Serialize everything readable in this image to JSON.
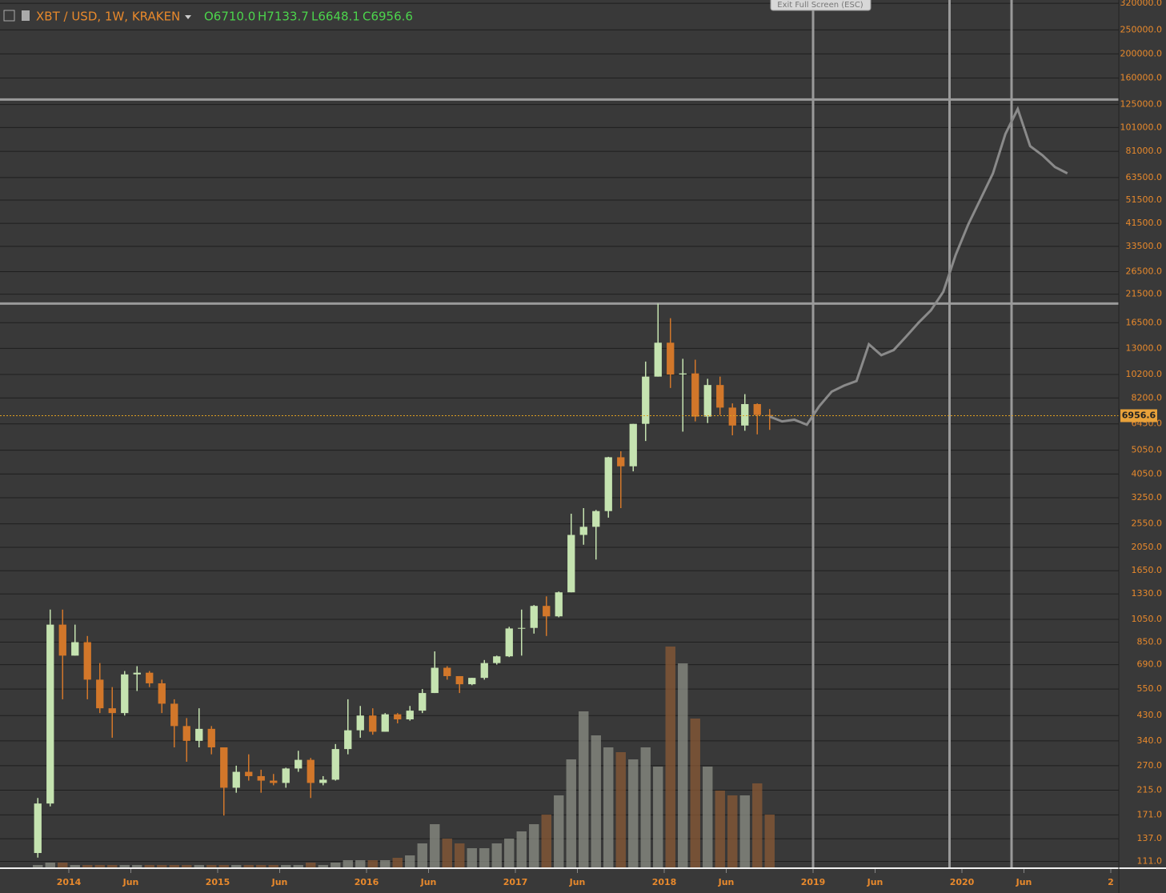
{
  "header": {
    "title": "XBT / USD, 1W, KRAKEN",
    "open": "O6710.0",
    "high": "H7133.7",
    "low": "L6648.1",
    "close": "C6956.6",
    "button": "Exit Full Screen (ESC)"
  },
  "chart_data": {
    "type": "candlestick",
    "log_y": true,
    "grid": true,
    "ylim": [
      105,
      330000
    ],
    "xlim": [
      "2013-07",
      "2021-01"
    ],
    "yticks": [
      {
        "value": 320000,
        "label": "320000.0"
      },
      {
        "value": 250000,
        "label": "250000.0"
      },
      {
        "value": 200000,
        "label": "200000.0"
      },
      {
        "value": 160000,
        "label": "160000.0"
      },
      {
        "value": 125000,
        "label": "125000.0"
      },
      {
        "value": 101000,
        "label": "101000.0"
      },
      {
        "value": 81000,
        "label": "81000.0"
      },
      {
        "value": 63500,
        "label": "63500.0"
      },
      {
        "value": 51500,
        "label": "51500.0"
      },
      {
        "value": 41500,
        "label": "41500.0"
      },
      {
        "value": 33500,
        "label": "33500.0"
      },
      {
        "value": 26500,
        "label": "26500.0"
      },
      {
        "value": 21500,
        "label": "21500.0"
      },
      {
        "value": 16500,
        "label": "16500.0"
      },
      {
        "value": 13000,
        "label": "13000.0"
      },
      {
        "value": 10200,
        "label": "10200.0"
      },
      {
        "value": 8200,
        "label": "8200.0"
      },
      {
        "value": 6450,
        "label": "6450.0"
      },
      {
        "value": 5050,
        "label": "5050.0"
      },
      {
        "value": 4050,
        "label": "4050.0"
      },
      {
        "value": 3250,
        "label": "3250.0"
      },
      {
        "value": 2550,
        "label": "2550.0"
      },
      {
        "value": 2050,
        "label": "2050.0"
      },
      {
        "value": 1650,
        "label": "1650.0"
      },
      {
        "value": 1330,
        "label": "1330.0"
      },
      {
        "value": 1050,
        "label": "1050.0"
      },
      {
        "value": 850,
        "label": "850.0"
      },
      {
        "value": 690,
        "label": "690.0"
      },
      {
        "value": 550,
        "label": "550.0"
      },
      {
        "value": 430,
        "label": "430.0"
      },
      {
        "value": 340,
        "label": "340.0"
      },
      {
        "value": 270,
        "label": "270.0"
      },
      {
        "value": 215,
        "label": "215.0"
      },
      {
        "value": 171,
        "label": "171.0"
      },
      {
        "value": 137,
        "label": "137.0"
      },
      {
        "value": 111,
        "label": "111.0"
      }
    ],
    "xticks": [
      {
        "value": "2014-01",
        "label": "2014"
      },
      {
        "value": "2014-06",
        "label": "Jun"
      },
      {
        "value": "2015-01",
        "label": "2015"
      },
      {
        "value": "2015-06",
        "label": "Jun"
      },
      {
        "value": "2016-01",
        "label": "2016"
      },
      {
        "value": "2016-06",
        "label": "Jun"
      },
      {
        "value": "2017-01",
        "label": "2017"
      },
      {
        "value": "2017-06",
        "label": "Jun"
      },
      {
        "value": "2018-01",
        "label": "2018"
      },
      {
        "value": "2018-06",
        "label": "Jun"
      },
      {
        "value": "2019-01",
        "label": "2019"
      },
      {
        "value": "2019-06",
        "label": "Jun"
      },
      {
        "value": "2020-01",
        "label": "2020"
      },
      {
        "value": "2020-06",
        "label": "Jun"
      },
      {
        "value": "2021-01",
        "label": "2"
      }
    ],
    "up_color": "#c5e3b0",
    "down_color": "#d2772a",
    "x": [
      "2013-10",
      "2013-11",
      "2013-12",
      "2014-01",
      "2014-02",
      "2014-03",
      "2014-04",
      "2014-05",
      "2014-06",
      "2014-07",
      "2014-08",
      "2014-09",
      "2014-10",
      "2014-11",
      "2014-12",
      "2015-01",
      "2015-02",
      "2015-03",
      "2015-04",
      "2015-05",
      "2015-06",
      "2015-07",
      "2015-08",
      "2015-09",
      "2015-10",
      "2015-11",
      "2015-12",
      "2016-01",
      "2016-02",
      "2016-03",
      "2016-04",
      "2016-05",
      "2016-06",
      "2016-07",
      "2016-08",
      "2016-09",
      "2016-10",
      "2016-11",
      "2016-12",
      "2017-01",
      "2017-02",
      "2017-03",
      "2017-04",
      "2017-05",
      "2017-06",
      "2017-07",
      "2017-08",
      "2017-09",
      "2017-10",
      "2017-11",
      "2017-12",
      "2018-01",
      "2018-02",
      "2018-03",
      "2018-04",
      "2018-05",
      "2018-06",
      "2018-07",
      "2018-08",
      "2018-09"
    ],
    "open": [
      120,
      190,
      1000,
      750,
      850,
      600,
      460,
      440,
      630,
      640,
      580,
      480,
      390,
      340,
      380,
      320,
      220,
      255,
      245,
      235,
      230,
      263,
      285,
      230,
      237,
      315,
      375,
      430,
      370,
      435,
      415,
      450,
      530,
      670,
      620,
      575,
      610,
      700,
      745,
      965,
      970,
      1190,
      1080,
      1350,
      2300,
      2480,
      2870,
      4730,
      4350,
      6450,
      10000,
      13700,
      10200,
      10300,
      6900,
      9250,
      7500,
      6350,
      7750,
      7000
    ],
    "high": [
      200,
      1150,
      1150,
      1000,
      900,
      700,
      560,
      650,
      680,
      650,
      600,
      500,
      420,
      460,
      390,
      320,
      270,
      300,
      260,
      250,
      265,
      310,
      290,
      245,
      330,
      500,
      470,
      460,
      440,
      440,
      470,
      550,
      780,
      680,
      620,
      610,
      720,
      750,
      980,
      1150,
      1200,
      1300,
      1360,
      2800,
      2950,
      2900,
      4750,
      5000,
      6450,
      11500,
      19700,
      17200,
      11800,
      11700,
      9800,
      10000,
      7800,
      8500,
      7800,
      7400
    ],
    "low": [
      115,
      185,
      500,
      750,
      500,
      440,
      350,
      430,
      540,
      560,
      440,
      320,
      280,
      320,
      300,
      170,
      210,
      235,
      210,
      225,
      220,
      255,
      200,
      225,
      235,
      300,
      350,
      360,
      370,
      400,
      410,
      440,
      530,
      600,
      530,
      570,
      600,
      690,
      740,
      750,
      920,
      900,
      1070,
      1350,
      2100,
      1830,
      2700,
      2950,
      4150,
      5500,
      10000,
      9000,
      6000,
      6600,
      6500,
      7000,
      5800,
      6050,
      5850,
      6100
    ],
    "close": [
      190,
      1000,
      750,
      850,
      600,
      460,
      440,
      630,
      640,
      580,
      480,
      390,
      340,
      380,
      320,
      220,
      255,
      245,
      235,
      230,
      263,
      285,
      230,
      237,
      315,
      375,
      430,
      370,
      435,
      415,
      450,
      530,
      670,
      620,
      575,
      610,
      700,
      745,
      965,
      970,
      1190,
      1080,
      1350,
      2300,
      2480,
      2870,
      4730,
      4350,
      6450,
      10000,
      13700,
      10200,
      10300,
      6900,
      9250,
      7500,
      6350,
      7750,
      7000,
      6956.6
    ],
    "volume": {
      "ylim": [
        0,
        100
      ],
      "values": [
        1,
        2,
        2,
        1,
        1,
        1,
        1,
        1,
        1,
        1,
        1,
        1,
        1,
        1,
        1,
        1,
        1,
        1,
        1,
        1,
        1,
        1,
        2,
        1,
        2,
        3,
        3,
        3,
        3,
        4,
        5,
        10,
        18,
        12,
        10,
        8,
        8,
        10,
        12,
        15,
        18,
        22,
        30,
        45,
        65,
        55,
        50,
        48,
        45,
        50,
        42,
        92,
        85,
        62,
        42,
        32,
        30,
        30,
        35,
        22
      ],
      "color": "#8c8f85",
      "down_color": "#8a5a35"
    },
    "projection": {
      "color": "#8a8a8a",
      "x": [
        "2018-09",
        "2018-10",
        "2018-11",
        "2018-12",
        "2019-01",
        "2019-02",
        "2019-03",
        "2019-04",
        "2019-05",
        "2019-06",
        "2019-07",
        "2019-08",
        "2019-09",
        "2019-10",
        "2019-11",
        "2019-12",
        "2020-01",
        "2020-02",
        "2020-03",
        "2020-04",
        "2020-05",
        "2020-06",
        "2020-07",
        "2020-08",
        "2020-09"
      ],
      "values": [
        6900,
        6600,
        6700,
        6400,
        7600,
        8700,
        9200,
        9600,
        13500,
        12200,
        12800,
        14500,
        16500,
        18500,
        22000,
        31000,
        41000,
        52000,
        66000,
        95000,
        120000,
        85000,
        78000,
        70000,
        66000
      ]
    },
    "levels": [
      131000,
      19700
    ],
    "vlines": [
      "2019-01",
      "2019-12",
      "2020-05"
    ],
    "last_price": {
      "value": 6956.6,
      "label": "6956.6"
    }
  }
}
